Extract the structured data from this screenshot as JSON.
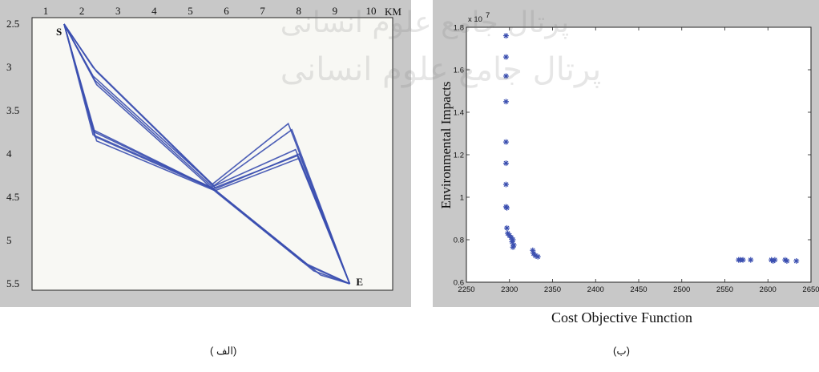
{
  "chart_data": [
    {
      "type": "line",
      "x_unit_label": "KM",
      "x_ticks": [
        1,
        2,
        3,
        4,
        5,
        6,
        7,
        8,
        9,
        10
      ],
      "y_ticks": [
        2.5,
        3,
        3.5,
        4,
        4.5,
        5,
        5.5
      ],
      "xlim": [
        1,
        10
      ],
      "ylim": [
        2.5,
        5.5
      ],
      "y_reversed": true,
      "grid": false,
      "point_labels": [
        {
          "text": "S",
          "x": 1.4,
          "y": 2.5
        },
        {
          "text": "E",
          "x": 9.3,
          "y": 5.5
        }
      ],
      "line_color": "#3b4fb0",
      "series": [
        {
          "points": [
            [
              1.4,
              2.5
            ],
            [
              2.2,
              3.1
            ],
            [
              5.5,
              4.35
            ],
            [
              7.6,
              3.65
            ],
            [
              9.3,
              5.5
            ]
          ]
        },
        {
          "points": [
            [
              1.4,
              2.5
            ],
            [
              2.25,
              3.15
            ],
            [
              5.5,
              4.38
            ],
            [
              7.7,
              3.72
            ],
            [
              9.3,
              5.5
            ]
          ]
        },
        {
          "points": [
            [
              1.4,
              2.5
            ],
            [
              2.3,
              3.05
            ],
            [
              5.6,
              4.4
            ],
            [
              7.9,
              4.0
            ],
            [
              9.3,
              5.5
            ]
          ]
        },
        {
          "points": [
            [
              1.4,
              2.5
            ],
            [
              2.2,
              3.0
            ],
            [
              5.55,
              4.37
            ],
            [
              7.8,
              3.95
            ],
            [
              9.3,
              5.5
            ]
          ]
        },
        {
          "points": [
            [
              1.4,
              2.5
            ],
            [
              2.25,
              3.75
            ],
            [
              5.6,
              4.42
            ],
            [
              7.9,
              4.05
            ],
            [
              9.3,
              5.5
            ]
          ]
        },
        {
          "points": [
            [
              1.4,
              2.5
            ],
            [
              2.2,
              3.72
            ],
            [
              5.5,
              4.4
            ],
            [
              7.85,
              4.02
            ],
            [
              9.3,
              5.5
            ]
          ]
        },
        {
          "points": [
            [
              1.4,
              2.5
            ],
            [
              2.3,
              3.85
            ],
            [
              5.6,
              4.43
            ],
            [
              8.3,
              5.35
            ],
            [
              9.3,
              5.5
            ]
          ]
        },
        {
          "points": [
            [
              1.4,
              2.5
            ],
            [
              2.25,
              3.8
            ],
            [
              5.55,
              4.41
            ],
            [
              8.2,
              5.3
            ],
            [
              9.3,
              5.5
            ]
          ]
        },
        {
          "points": [
            [
              1.4,
              2.5
            ],
            [
              2.2,
              3.78
            ],
            [
              5.5,
              4.39
            ],
            [
              8.5,
              5.4
            ],
            [
              9.3,
              5.5
            ]
          ]
        },
        {
          "points": [
            [
              1.4,
              2.5
            ],
            [
              2.3,
              3.2
            ],
            [
              5.6,
              4.44
            ],
            [
              8.0,
              5.25
            ],
            [
              9.3,
              5.5
            ]
          ]
        }
      ]
    },
    {
      "type": "scatter",
      "xlabel": "Cost Objective Function",
      "ylabel": "Environmental Impacts",
      "y_scale_label": "x 10",
      "y_scale_exp": "7",
      "xlim": [
        2250,
        2650
      ],
      "ylim": [
        0.6,
        1.8
      ],
      "x_ticks": [
        2250,
        2300,
        2350,
        2400,
        2450,
        2500,
        2550,
        2600,
        2650
      ],
      "y_ticks": [
        "0.6",
        "0.8",
        "1",
        "1.2",
        "1.4",
        "1.6",
        "1.8"
      ],
      "marker": "*",
      "marker_color": "#3b4fb0",
      "points": [
        [
          2296,
          1.76
        ],
        [
          2296,
          1.66
        ],
        [
          2296,
          1.57
        ],
        [
          2296,
          1.45
        ],
        [
          2296,
          1.26
        ],
        [
          2296,
          1.16
        ],
        [
          2296,
          1.06
        ],
        [
          2296,
          0.955
        ],
        [
          2297,
          0.95
        ],
        [
          2297,
          0.855
        ],
        [
          2298,
          0.83
        ],
        [
          2300,
          0.82
        ],
        [
          2302,
          0.81
        ],
        [
          2304,
          0.8
        ],
        [
          2303,
          0.79
        ],
        [
          2305,
          0.775
        ],
        [
          2304,
          0.765
        ],
        [
          2327,
          0.75
        ],
        [
          2328,
          0.735
        ],
        [
          2330,
          0.725
        ],
        [
          2333,
          0.72
        ],
        [
          2566,
          0.705
        ],
        [
          2568,
          0.705
        ],
        [
          2571,
          0.705
        ],
        [
          2580,
          0.705
        ],
        [
          2604,
          0.705
        ],
        [
          2606,
          0.7
        ],
        [
          2608,
          0.705
        ],
        [
          2620,
          0.705
        ],
        [
          2622,
          0.7
        ],
        [
          2633,
          0.7
        ]
      ]
    }
  ],
  "captions": {
    "left": "( الف)",
    "right": "(ب)"
  },
  "watermark_text": "پرتال جامع علوم انسانی"
}
